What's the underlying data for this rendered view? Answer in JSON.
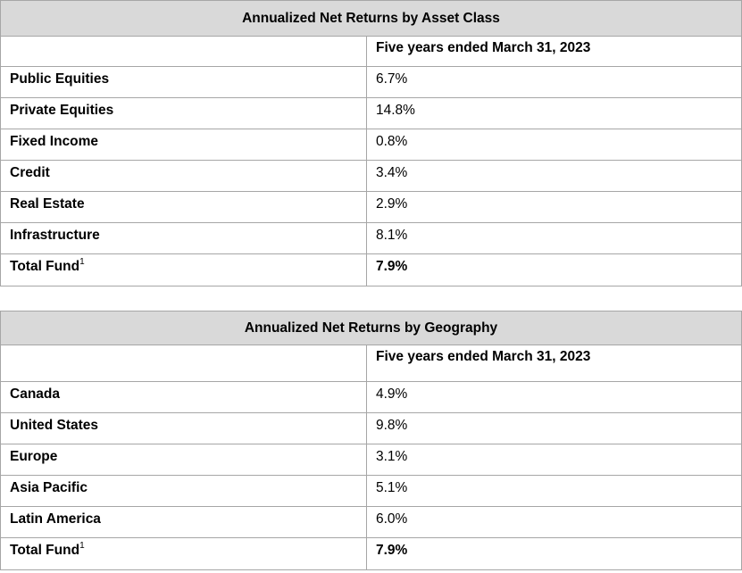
{
  "asset_class": {
    "title": "Annualized Net Returns by Asset Class",
    "period_header": "Five years ended March 31, 2023",
    "rows": [
      {
        "label": "Public Equities",
        "value": "6.7%"
      },
      {
        "label": "Private Equities",
        "value": "14.8%"
      },
      {
        "label": "Fixed Income",
        "value": "0.8%"
      },
      {
        "label": "Credit",
        "value": "3.4%"
      },
      {
        "label": "Real Estate",
        "value": "2.9%"
      },
      {
        "label": "Infrastructure",
        "value": "8.1%"
      }
    ],
    "total": {
      "label": "Total Fund",
      "footnote": "1",
      "value": "7.9%"
    }
  },
  "geography": {
    "title": "Annualized Net Returns by Geography",
    "period_header": "Five years ended March 31, 2023",
    "rows": [
      {
        "label": "Canada",
        "value": "4.9%"
      },
      {
        "label": "United States",
        "value": "9.8%"
      },
      {
        "label": "Europe",
        "value": "3.1%"
      },
      {
        "label": "Asia Pacific",
        "value": "5.1%"
      },
      {
        "label": "Latin America",
        "value": "6.0%"
      }
    ],
    "total": {
      "label": "Total Fund",
      "footnote": "1",
      "value": "7.9%"
    }
  }
}
